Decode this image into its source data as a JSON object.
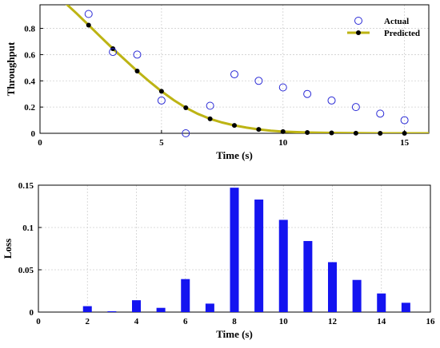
{
  "colors": {
    "actual": "#2a2ad6",
    "predicted_line": "#bdb414",
    "predicted_marker": "#000000",
    "bars": "#1414f0",
    "axes": "#000000",
    "grid": "#d0d0d0"
  },
  "chart_data": [
    {
      "type": "line",
      "xlabel": "Time (s)",
      "ylabel": "Throughput",
      "xlim": [
        0,
        16
      ],
      "ylim": [
        0,
        0.98
      ],
      "xticks": [
        0,
        5,
        10,
        15
      ],
      "yticks": [
        0,
        0.2,
        0.4,
        0.6,
        0.8
      ],
      "grid": true,
      "legend_position": "top-right",
      "series": [
        {
          "name": "Actual",
          "style": "open-circle-markers",
          "x": [
            2,
            3,
            4,
            5,
            6,
            7,
            8,
            9,
            10,
            11,
            12,
            13,
            14,
            15
          ],
          "y": [
            0.91,
            0.62,
            0.6,
            0.25,
            0.0,
            0.21,
            0.45,
            0.4,
            0.35,
            0.3,
            0.25,
            0.2,
            0.15,
            0.1
          ]
        },
        {
          "name": "Predicted",
          "style": "line-with-dot-markers",
          "x": [
            2,
            3,
            4,
            5,
            6,
            7,
            8,
            9,
            10,
            11,
            12,
            13,
            14,
            15
          ],
          "y": [
            0.825,
            0.645,
            0.475,
            0.32,
            0.195,
            0.11,
            0.06,
            0.03,
            0.013,
            0.006,
            0.003,
            0.001,
            0.0,
            0.0
          ]
        }
      ],
      "curve": {
        "x": [
          1,
          1.5,
          2,
          2.5,
          3,
          3.5,
          4,
          4.5,
          5,
          5.5,
          6,
          6.5,
          7,
          7.5,
          8,
          8.5,
          9,
          9.5,
          10,
          11,
          12,
          13,
          14,
          15,
          16
        ],
        "y": [
          1.0,
          0.915,
          0.825,
          0.735,
          0.645,
          0.56,
          0.475,
          0.395,
          0.32,
          0.253,
          0.195,
          0.148,
          0.11,
          0.082,
          0.06,
          0.043,
          0.03,
          0.02,
          0.013,
          0.006,
          0.003,
          0.001,
          0.0,
          0.0,
          0.0
        ]
      }
    },
    {
      "type": "bar",
      "xlabel": "Time (s)",
      "ylabel": "Loss",
      "xlim": [
        0,
        16
      ],
      "ylim": [
        0,
        0.15
      ],
      "xticks": [
        0,
        2,
        4,
        6,
        8,
        10,
        12,
        14,
        16
      ],
      "yticks": [
        0,
        0.05,
        0.1,
        0.15
      ],
      "grid": true,
      "x": [
        2,
        3,
        4,
        5,
        6,
        7,
        8,
        9,
        10,
        11,
        12,
        13,
        14,
        15
      ],
      "values": [
        0.007,
        0.001,
        0.014,
        0.005,
        0.039,
        0.01,
        0.147,
        0.133,
        0.109,
        0.084,
        0.059,
        0.038,
        0.022,
        0.011
      ]
    }
  ]
}
